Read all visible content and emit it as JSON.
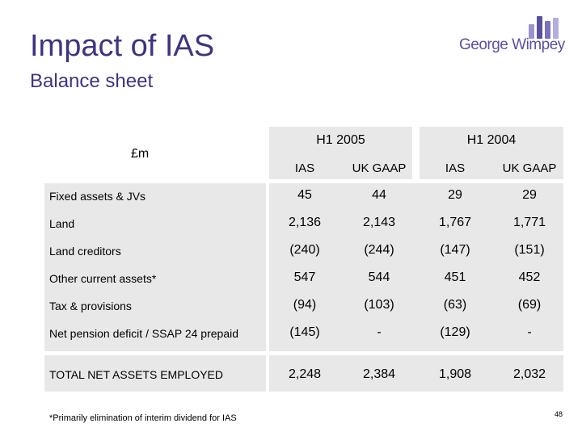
{
  "title": "Impact of IAS",
  "subtitle": "Balance sheet",
  "logo": {
    "text": "George Wimpey",
    "brand_color": "#5a4fa0"
  },
  "table": {
    "unit_label": "£m",
    "groups": [
      "H1 2005",
      "H1 2004"
    ],
    "columns": [
      "IAS",
      "UK GAAP",
      "IAS",
      "UK GAAP"
    ],
    "rows": [
      {
        "label": "Fixed assets & JVs",
        "values": [
          "45",
          "44",
          "29",
          "29"
        ]
      },
      {
        "label": "Land",
        "values": [
          "2,136",
          "2,143",
          "1,767",
          "1,771"
        ]
      },
      {
        "label": "Land creditors",
        "values": [
          "(240)",
          "(244)",
          "(147)",
          "(151)"
        ]
      },
      {
        "label": "Other current assets*",
        "values": [
          "547",
          "544",
          "451",
          "452"
        ]
      },
      {
        "label": "Tax & provisions",
        "values": [
          "(94)",
          "(103)",
          "(63)",
          "(69)"
        ]
      },
      {
        "label": "Net pension deficit / SSAP 24 prepaid",
        "values": [
          "(145)",
          "-",
          "(129)",
          "-"
        ]
      }
    ],
    "total": {
      "label": "TOTAL NET ASSETS EMPLOYED",
      "values": [
        "2,248",
        "2,384",
        "1,908",
        "2,032"
      ]
    }
  },
  "footnote": "*Primarily elimination of interim dividend for IAS",
  "page_number": "48"
}
